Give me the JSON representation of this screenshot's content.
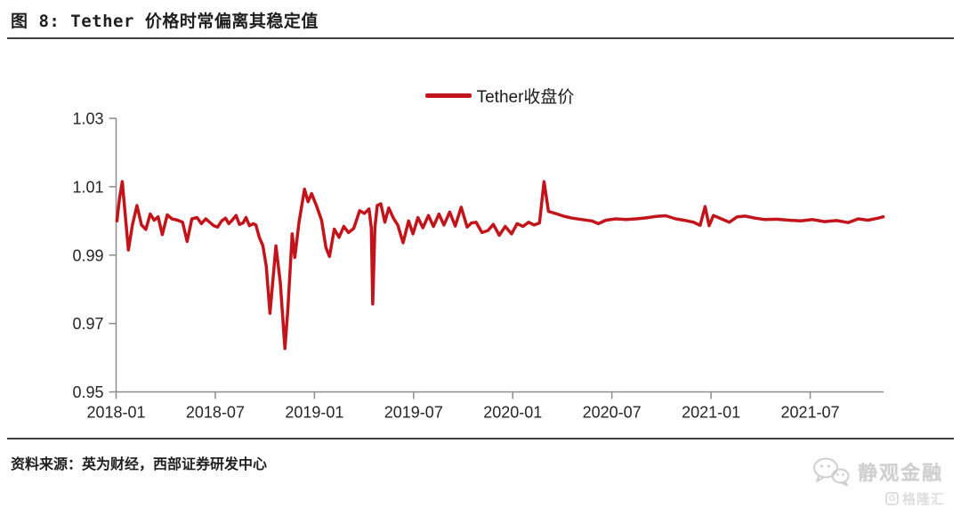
{
  "header": {
    "title": "图 8: Tether 价格时常偏离其稳定值"
  },
  "footer": {
    "source": "资料来源：英为财经，西部证券研发中心"
  },
  "watermark": {
    "wechat_name": "静观金融",
    "gelonghui_name": "格隆汇",
    "gelonghui_letter": "G"
  },
  "colors": {
    "line": "#C2151B",
    "axis": "#8C8C8C",
    "rule": "#3F3F3F",
    "tick_label": "#262626",
    "watermark_strong": "#CFCFCF",
    "watermark_light": "#DEDEDE"
  },
  "chart_data": {
    "type": "line",
    "figure_title": "图 8: Tether 价格时常偏离其稳定值",
    "legend": [
      "Tether收盘价"
    ],
    "legend_position": "top-center",
    "grid": false,
    "xlabel": "",
    "ylabel": "",
    "xlim": [
      2018.0,
      2021.87
    ],
    "ylim": [
      0.95,
      1.03
    ],
    "yticks": [
      0.95,
      0.97,
      0.99,
      1.01,
      1.03
    ],
    "xticks": [
      {
        "value": 2018.0,
        "label": "2018-01"
      },
      {
        "value": 2018.5,
        "label": "2018-07"
      },
      {
        "value": 2019.0,
        "label": "2019-01"
      },
      {
        "value": 2019.5,
        "label": "2019-07"
      },
      {
        "value": 2020.0,
        "label": "2020-01"
      },
      {
        "value": 2020.5,
        "label": "2020-07"
      },
      {
        "value": 2021.0,
        "label": "2021-01"
      },
      {
        "value": 2021.5,
        "label": "2021-07"
      }
    ],
    "series": [
      {
        "name": "Tether收盘价",
        "points": [
          [
            2018.004,
            1.0
          ],
          [
            2018.016,
            1.0062
          ],
          [
            2018.031,
            1.0115
          ],
          [
            2018.048,
            1.0005
          ],
          [
            2018.062,
            0.9915
          ],
          [
            2018.082,
            0.9988
          ],
          [
            2018.105,
            1.0045
          ],
          [
            2018.128,
            0.9988
          ],
          [
            2018.15,
            0.9975
          ],
          [
            2018.172,
            1.002
          ],
          [
            2018.192,
            1.0002
          ],
          [
            2018.212,
            1.0012
          ],
          [
            2018.233,
            0.996
          ],
          [
            2018.258,
            1.0018
          ],
          [
            2018.282,
            1.0006
          ],
          [
            2018.31,
            1.0002
          ],
          [
            2018.335,
            0.9996
          ],
          [
            2018.358,
            0.994
          ],
          [
            2018.382,
            1.0006
          ],
          [
            2018.408,
            1.001
          ],
          [
            2018.43,
            0.9992
          ],
          [
            2018.452,
            1.0006
          ],
          [
            2018.472,
            0.9996
          ],
          [
            2018.492,
            0.9986
          ],
          [
            2018.512,
            0.9982
          ],
          [
            2018.532,
            1.0
          ],
          [
            2018.552,
            1.0008
          ],
          [
            2018.568,
            0.9992
          ],
          [
            2018.585,
            1.0002
          ],
          [
            2018.605,
            1.0016
          ],
          [
            2018.622,
            0.999
          ],
          [
            2018.64,
            0.9994
          ],
          [
            2018.655,
            1.001
          ],
          [
            2018.672,
            0.9986
          ],
          [
            2018.692,
            0.9992
          ],
          [
            2018.705,
            0.9988
          ],
          [
            2018.722,
            0.9952
          ],
          [
            2018.74,
            0.9928
          ],
          [
            2018.757,
            0.9868
          ],
          [
            2018.776,
            0.973
          ],
          [
            2018.806,
            0.9927
          ],
          [
            2018.828,
            0.982
          ],
          [
            2018.851,
            0.9627
          ],
          [
            2018.866,
            0.9742
          ],
          [
            2018.888,
            0.9962
          ],
          [
            2018.901,
            0.9893
          ],
          [
            2018.922,
            0.9995
          ],
          [
            2018.95,
            1.0093
          ],
          [
            2018.968,
            1.0056
          ],
          [
            2018.986,
            1.008
          ],
          [
            2019.012,
            1.0042
          ],
          [
            2019.036,
            1.0002
          ],
          [
            2019.058,
            0.9922
          ],
          [
            2019.076,
            0.9896
          ],
          [
            2019.1,
            0.9976
          ],
          [
            2019.124,
            0.9952
          ],
          [
            2019.148,
            0.9984
          ],
          [
            2019.172,
            0.9966
          ],
          [
            2019.198,
            0.9978
          ],
          [
            2019.228,
            1.003
          ],
          [
            2019.252,
            1.0022
          ],
          [
            2019.275,
            1.0035
          ],
          [
            2019.287,
            0.998
          ],
          [
            2019.294,
            0.9757
          ],
          [
            2019.305,
            0.998
          ],
          [
            2019.317,
            1.0045
          ],
          [
            2019.335,
            1.005
          ],
          [
            2019.355,
            0.9996
          ],
          [
            2019.375,
            1.0038
          ],
          [
            2019.398,
            1.0008
          ],
          [
            2019.42,
            0.9988
          ],
          [
            2019.447,
            0.9936
          ],
          [
            2019.475,
            1.0
          ],
          [
            2019.497,
            0.9962
          ],
          [
            2019.522,
            1.001
          ],
          [
            2019.547,
            0.998
          ],
          [
            2019.575,
            1.0016
          ],
          [
            2019.6,
            0.9984
          ],
          [
            2019.628,
            1.002
          ],
          [
            2019.653,
            0.9988
          ],
          [
            2019.682,
            1.0026
          ],
          [
            2019.71,
            0.9985
          ],
          [
            2019.74,
            1.004
          ],
          [
            2019.77,
            0.9982
          ],
          [
            2019.792,
            0.9994
          ],
          [
            2019.815,
            0.9996
          ],
          [
            2019.845,
            0.9966
          ],
          [
            2019.875,
            0.9972
          ],
          [
            2019.902,
            0.999
          ],
          [
            2019.932,
            0.9958
          ],
          [
            2019.962,
            0.9984
          ],
          [
            2019.994,
            0.9962
          ],
          [
            2020.022,
            0.9992
          ],
          [
            2020.052,
            0.9984
          ],
          [
            2020.08,
            0.9996
          ],
          [
            2020.108,
            0.9988
          ],
          [
            2020.135,
            0.9994
          ],
          [
            2020.158,
            1.0115
          ],
          [
            2020.18,
            1.0028
          ],
          [
            2020.215,
            1.0022
          ],
          [
            2020.255,
            1.0014
          ],
          [
            2020.3,
            1.0008
          ],
          [
            2020.35,
            1.0004
          ],
          [
            2020.398,
            1.0
          ],
          [
            2020.432,
            0.9992
          ],
          [
            2020.47,
            1.0002
          ],
          [
            2020.52,
            1.0006
          ],
          [
            2020.57,
            1.0004
          ],
          [
            2020.622,
            1.0006
          ],
          [
            2020.672,
            1.0009
          ],
          [
            2020.722,
            1.0013
          ],
          [
            2020.772,
            1.0015
          ],
          [
            2020.822,
            1.0006
          ],
          [
            2020.872,
            1.0001
          ],
          [
            2020.912,
            0.9996
          ],
          [
            2020.945,
            0.9987
          ],
          [
            2020.97,
            1.0042
          ],
          [
            2020.99,
            0.9986
          ],
          [
            2021.012,
            1.0016
          ],
          [
            2021.052,
            1.0006
          ],
          [
            2021.092,
            0.9996
          ],
          [
            2021.132,
            1.0012
          ],
          [
            2021.172,
            1.0014
          ],
          [
            2021.222,
            1.0008
          ],
          [
            2021.272,
            1.0004
          ],
          [
            2021.332,
            1.0005
          ],
          [
            2021.392,
            1.0002
          ],
          [
            2021.452,
            1.0
          ],
          [
            2021.512,
            1.0004
          ],
          [
            2021.572,
            0.9998
          ],
          [
            2021.632,
            1.0001
          ],
          [
            2021.692,
            0.9995
          ],
          [
            2021.742,
            1.0006
          ],
          [
            2021.792,
            1.0002
          ],
          [
            2021.842,
            1.0008
          ],
          [
            2021.868,
            1.0012
          ]
        ]
      }
    ]
  }
}
